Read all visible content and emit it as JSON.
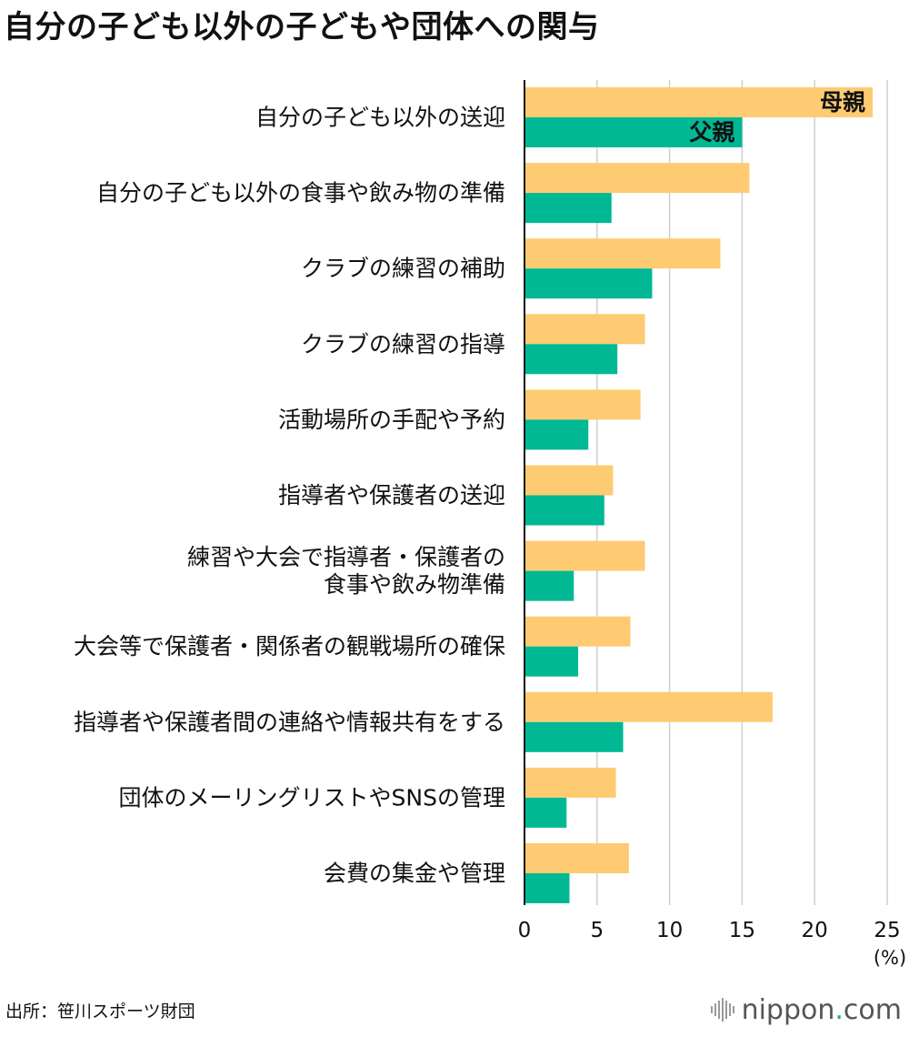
{
  "title": "自分の子ども以外の子どもや団体への関与",
  "source": "出所：笹川スポーツ財団",
  "logo": {
    "name": "nippon",
    "dot": ".",
    "tld": "com",
    "accent": "#1aa896"
  },
  "chart_data": {
    "type": "bar",
    "orientation": "horizontal",
    "categories": [
      [
        "自分の子ども以外の送迎"
      ],
      [
        "自分の子ども以外の食事や飲み物の準備"
      ],
      [
        "クラブの練習の補助"
      ],
      [
        "クラブの練習の指導"
      ],
      [
        "活動場所の手配や予約"
      ],
      [
        "指導者や保護者の送迎"
      ],
      [
        "練習や大会で指導者・保護者の",
        "食事や飲み物準備"
      ],
      [
        "大会等で保護者・関係者の観戦場所の確保"
      ],
      [
        "指導者や保護者間の連絡や情報共有をする"
      ],
      [
        "団体のメーリングリストやSNSの管理"
      ],
      [
        "会費の集金や管理"
      ]
    ],
    "series": [
      {
        "name": "母親",
        "color": "#fecb72",
        "values": [
          24.0,
          15.5,
          13.5,
          8.3,
          8.0,
          6.1,
          8.3,
          7.3,
          17.1,
          6.3,
          7.2
        ]
      },
      {
        "name": "父親",
        "color": "#00b894",
        "values": [
          15.0,
          6.0,
          8.8,
          6.4,
          4.4,
          5.5,
          3.4,
          3.7,
          6.8,
          2.9,
          3.1
        ]
      }
    ],
    "xlim": [
      0,
      25
    ],
    "xticks": [
      "0",
      "5",
      "10",
      "15",
      "20",
      "25"
    ],
    "xunit": "(%)",
    "grid": true,
    "legend": "inline-labels-on-first-bars"
  }
}
